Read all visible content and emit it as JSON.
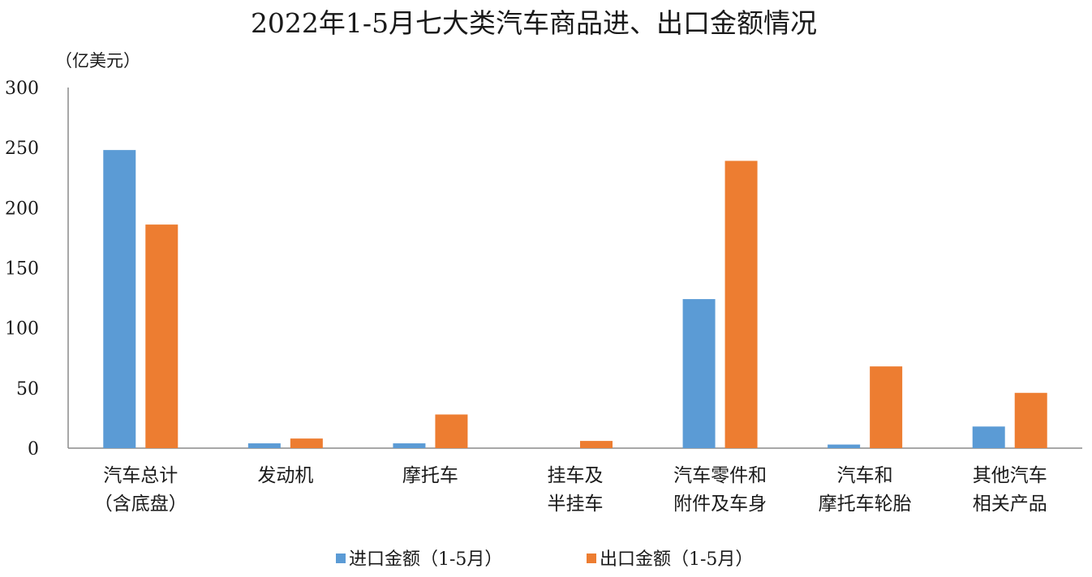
{
  "chart_data": {
    "type": "bar",
    "title": "2022年1-5月七大类汽车商品进、出口金额情况",
    "unit_label": "（亿美元）",
    "ylim": [
      0,
      300
    ],
    "yticks": [
      "0",
      "50",
      "100",
      "150",
      "200",
      "250",
      "300"
    ],
    "ytick_values": [
      0,
      50,
      100,
      150,
      200,
      250,
      300
    ],
    "grid": false,
    "legend_position": "bottom",
    "categories": [
      [
        "汽车总计",
        "（含底盘）"
      ],
      [
        "发动机"
      ],
      [
        "摩托车"
      ],
      [
        "挂车及",
        "半挂车"
      ],
      [
        "汽车零件和",
        "附件及车身"
      ],
      [
        "汽车和",
        "摩托车轮胎"
      ],
      [
        "其他汽车",
        "相关产品"
      ]
    ],
    "series": [
      {
        "name": "进口金额（1-5月）",
        "color": "#5b9bd5",
        "values": [
          248,
          4,
          4,
          0,
          124,
          3,
          18
        ]
      },
      {
        "name": "出口金额（1-5月）",
        "color": "#ed7d31",
        "values": [
          186,
          8,
          28,
          6,
          239,
          68,
          46
        ]
      }
    ]
  }
}
